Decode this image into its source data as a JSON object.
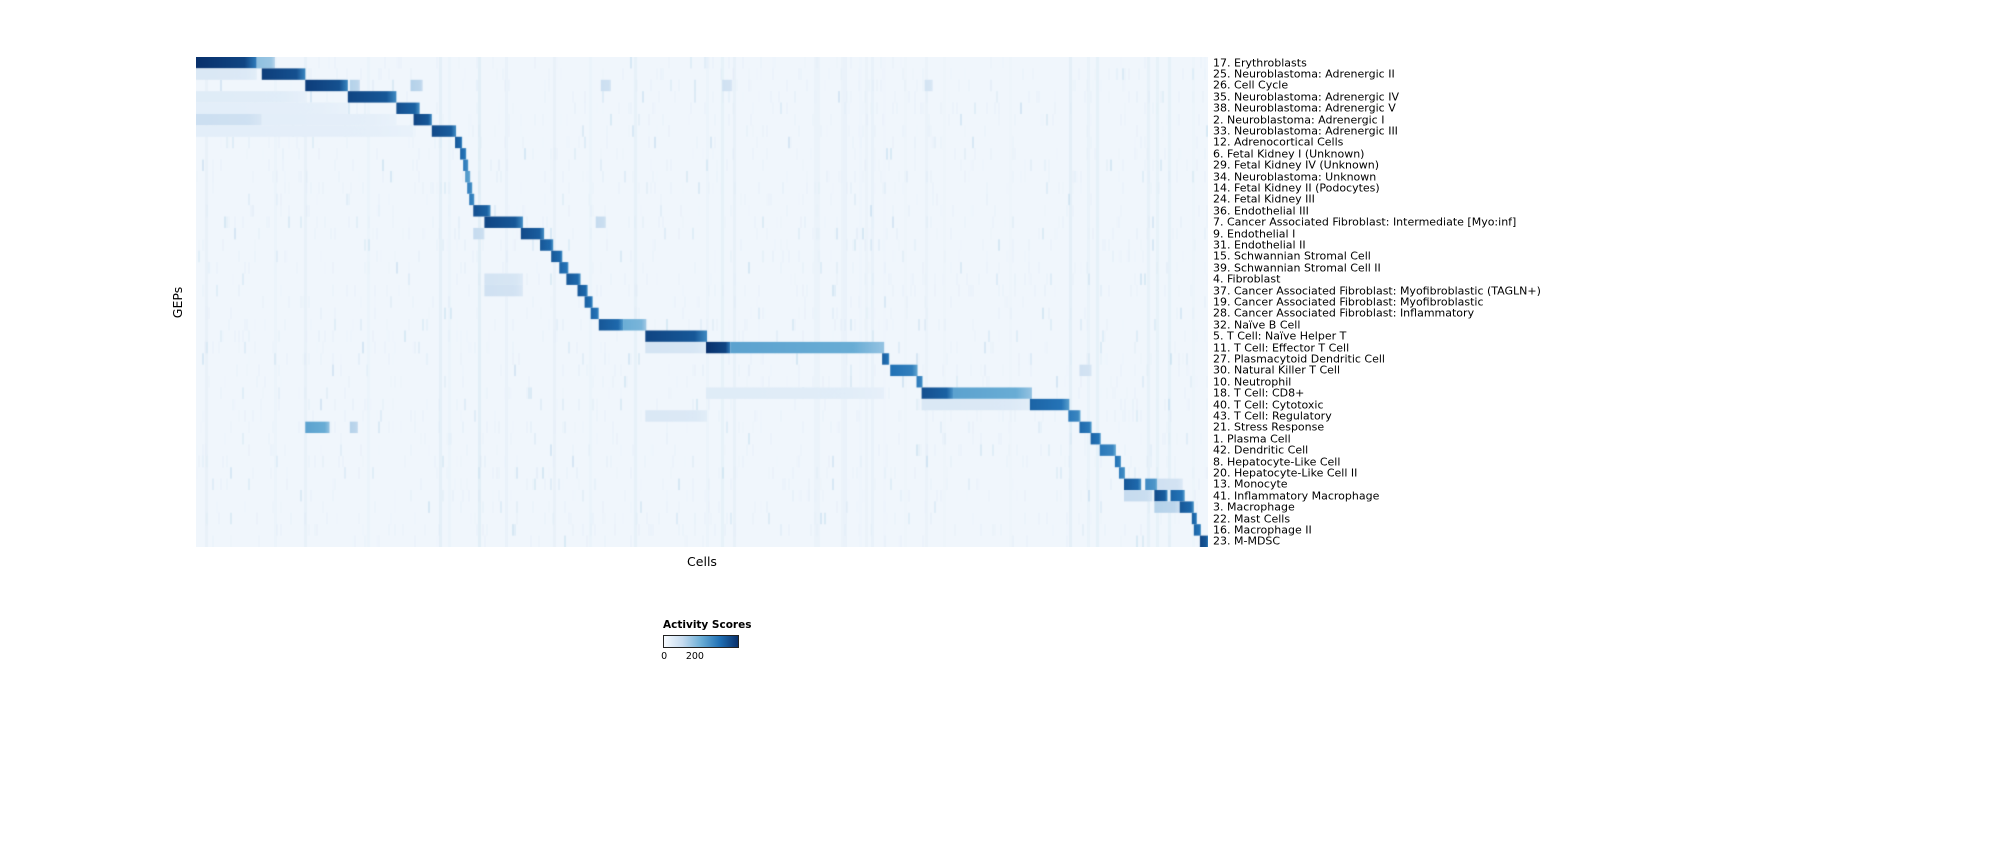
{
  "chart_data": {
    "type": "heatmap",
    "title": "",
    "xlabel": "Cells",
    "ylabel": "GEPs",
    "background": "#f0f6fc",
    "colorbar": {
      "title": "Activity Scores",
      "min": 0,
      "max": 200,
      "min_label": "0",
      "max_label": "200",
      "max_label_pos": 0.42,
      "colormap": "Blues",
      "colors": [
        "#f7fbff",
        "#c6dbef",
        "#6baed6",
        "#2171b5",
        "#08306b"
      ]
    },
    "n_rows": 43,
    "legend_position": "bottom-left",
    "noise": {
      "seed": 12345
    },
    "band_regions": [
      [
        0.06,
        0.16,
        1.3
      ],
      [
        0.19,
        0.27,
        2.4
      ],
      [
        0.27,
        0.34,
        1.8
      ],
      [
        0.38,
        0.45,
        1.6
      ],
      [
        0.5,
        0.56,
        1.3
      ],
      [
        0.6,
        0.64,
        1.3
      ],
      [
        0.86,
        0.93,
        1.6
      ],
      [
        0.93,
        1.0,
        1.4
      ]
    ],
    "rows": [
      {
        "label": "17. Erythroblasts",
        "blocks": [
          [
            0.0,
            0.06,
            1.0
          ],
          [
            0.06,
            0.078,
            0.4
          ]
        ]
      },
      {
        "label": "25. Neuroblastoma: Adrenergic II",
        "blocks": [
          [
            0.0,
            0.06,
            0.15
          ],
          [
            0.065,
            0.108,
            0.95
          ]
        ]
      },
      {
        "label": "26. Cell Cycle",
        "blocks": [
          [
            0.108,
            0.15,
            0.95
          ],
          [
            0.152,
            0.162,
            0.3
          ],
          [
            0.212,
            0.224,
            0.3
          ],
          [
            0.4,
            0.41,
            0.22
          ],
          [
            0.52,
            0.53,
            0.2
          ],
          [
            0.72,
            0.728,
            0.18
          ]
        ]
      },
      {
        "label": "35. Neuroblastoma: Adrenergic IV",
        "blocks": [
          [
            0.0,
            0.108,
            0.12
          ],
          [
            0.15,
            0.198,
            0.92
          ]
        ]
      },
      {
        "label": "38. Neuroblastoma: Adrenergic V",
        "blocks": [
          [
            0.0,
            0.15,
            0.1
          ],
          [
            0.198,
            0.221,
            0.88
          ]
        ]
      },
      {
        "label": "2. Neuroblastoma: Adrenergic I",
        "blocks": [
          [
            0.0,
            0.065,
            0.22
          ],
          [
            0.065,
            0.198,
            0.1
          ],
          [
            0.215,
            0.233,
            0.92
          ]
        ]
      },
      {
        "label": "33. Neuroblastoma: Adrenergic III",
        "blocks": [
          [
            0.0,
            0.215,
            0.1
          ],
          [
            0.233,
            0.257,
            0.9
          ]
        ]
      },
      {
        "label": "12. Adrenocortical Cells",
        "blocks": [
          [
            0.256,
            0.263,
            0.85
          ]
        ]
      },
      {
        "label": "6. Fetal Kidney I (Unknown)",
        "blocks": [
          [
            0.261,
            0.267,
            0.8
          ]
        ]
      },
      {
        "label": "29. Fetal Kidney IV (Unknown)",
        "blocks": [
          [
            0.264,
            0.269,
            0.72
          ]
        ]
      },
      {
        "label": "34. Neuroblastoma: Unknown",
        "blocks": [
          [
            0.266,
            0.271,
            0.6
          ]
        ]
      },
      {
        "label": "14. Fetal Kidney II (Podocytes)",
        "blocks": [
          [
            0.268,
            0.273,
            0.7
          ]
        ]
      },
      {
        "label": "24. Fetal Kidney III",
        "blocks": [
          [
            0.27,
            0.275,
            0.72
          ]
        ]
      },
      {
        "label": "36. Endothelial III",
        "blocks": [
          [
            0.274,
            0.291,
            0.88
          ]
        ]
      },
      {
        "label": "7. Cancer Associated Fibroblast: Intermediate [Myo:inf]",
        "blocks": [
          [
            0.285,
            0.323,
            0.92
          ],
          [
            0.395,
            0.405,
            0.25
          ]
        ]
      },
      {
        "label": "9. Endothelial I",
        "blocks": [
          [
            0.274,
            0.285,
            0.25
          ],
          [
            0.321,
            0.344,
            0.9
          ]
        ]
      },
      {
        "label": "31. Endothelial II",
        "blocks": [
          [
            0.34,
            0.353,
            0.85
          ]
        ]
      },
      {
        "label": "15. Schwannian Stromal Cell",
        "blocks": [
          [
            0.351,
            0.362,
            0.85
          ]
        ]
      },
      {
        "label": "39. Schwannian Stromal Cell II",
        "blocks": [
          [
            0.359,
            0.368,
            0.8
          ]
        ]
      },
      {
        "label": "4. Fibroblast",
        "blocks": [
          [
            0.285,
            0.323,
            0.18
          ],
          [
            0.366,
            0.38,
            0.85
          ]
        ]
      },
      {
        "label": "37. Cancer Associated Fibroblast: Myofibroblastic (TAGLN+)",
        "blocks": [
          [
            0.285,
            0.323,
            0.2
          ],
          [
            0.377,
            0.387,
            0.85
          ]
        ]
      },
      {
        "label": "19. Cancer Associated Fibroblast: Myofibroblastic",
        "blocks": [
          [
            0.384,
            0.392,
            0.82
          ]
        ]
      },
      {
        "label": "28. Cancer Associated Fibroblast: Inflammatory",
        "blocks": [
          [
            0.39,
            0.398,
            0.8
          ]
        ]
      },
      {
        "label": "32. Naïve B Cell",
        "blocks": [
          [
            0.398,
            0.422,
            0.85
          ],
          [
            0.422,
            0.445,
            0.5
          ]
        ]
      },
      {
        "label": "5. T Cell: Naïve Helper T",
        "blocks": [
          [
            0.444,
            0.505,
            0.92
          ]
        ]
      },
      {
        "label": "11. T Cell: Effector T Cell",
        "blocks": [
          [
            0.444,
            0.504,
            0.18
          ],
          [
            0.504,
            0.528,
            1.0
          ],
          [
            0.528,
            0.68,
            0.55
          ]
        ]
      },
      {
        "label": "27. Plasmacytoid Dendritic Cell",
        "blocks": [
          [
            0.678,
            0.685,
            0.82
          ]
        ]
      },
      {
        "label": "30. Natural Killer T Cell",
        "blocks": [
          [
            0.686,
            0.713,
            0.75
          ],
          [
            0.873,
            0.885,
            0.2
          ]
        ]
      },
      {
        "label": "10. Neutrophil",
        "blocks": [
          [
            0.712,
            0.718,
            0.72
          ]
        ]
      },
      {
        "label": "18. T Cell: CD8+",
        "blocks": [
          [
            0.504,
            0.68,
            0.12
          ],
          [
            0.717,
            0.748,
            0.88
          ],
          [
            0.748,
            0.826,
            0.55
          ]
        ]
      },
      {
        "label": "40. T Cell: Cytotoxic",
        "blocks": [
          [
            0.717,
            0.824,
            0.15
          ],
          [
            0.824,
            0.863,
            0.8
          ]
        ]
      },
      {
        "label": "43. T Cell: Regulatory",
        "blocks": [
          [
            0.444,
            0.505,
            0.15
          ],
          [
            0.862,
            0.874,
            0.72
          ]
        ]
      },
      {
        "label": "21. Stress Response",
        "blocks": [
          [
            0.108,
            0.132,
            0.55
          ],
          [
            0.152,
            0.16,
            0.3
          ],
          [
            0.873,
            0.885,
            0.78
          ]
        ]
      },
      {
        "label": "1. Plasma Cell",
        "blocks": [
          [
            0.884,
            0.894,
            0.8
          ]
        ]
      },
      {
        "label": "42. Dendritic Cell",
        "blocks": [
          [
            0.893,
            0.909,
            0.72
          ]
        ]
      },
      {
        "label": "8. Hepatocyte-Like Cell",
        "blocks": [
          [
            0.908,
            0.914,
            0.75
          ]
        ]
      },
      {
        "label": "20. Hepatocyte-Like Cell II",
        "blocks": [
          [
            0.912,
            0.918,
            0.7
          ]
        ]
      },
      {
        "label": "13. Monocyte",
        "blocks": [
          [
            0.917,
            0.934,
            0.85
          ],
          [
            0.938,
            0.95,
            0.65
          ],
          [
            0.95,
            0.975,
            0.2
          ]
        ]
      },
      {
        "label": "41. Inflammatory Macrophage",
        "blocks": [
          [
            0.917,
            0.945,
            0.25
          ],
          [
            0.947,
            0.96,
            0.9
          ],
          [
            0.963,
            0.977,
            0.8
          ]
        ]
      },
      {
        "label": "3. Macrophage",
        "blocks": [
          [
            0.947,
            0.972,
            0.3
          ],
          [
            0.972,
            0.986,
            0.85
          ]
        ]
      },
      {
        "label": "22. Mast Cells",
        "blocks": [
          [
            0.984,
            0.989,
            0.82
          ]
        ]
      },
      {
        "label": "16. Macrophage II",
        "blocks": [
          [
            0.986,
            0.993,
            0.8
          ]
        ]
      },
      {
        "label": "23. M-MDSC",
        "blocks": [
          [
            0.992,
            1.0,
            0.92
          ]
        ]
      }
    ]
  }
}
